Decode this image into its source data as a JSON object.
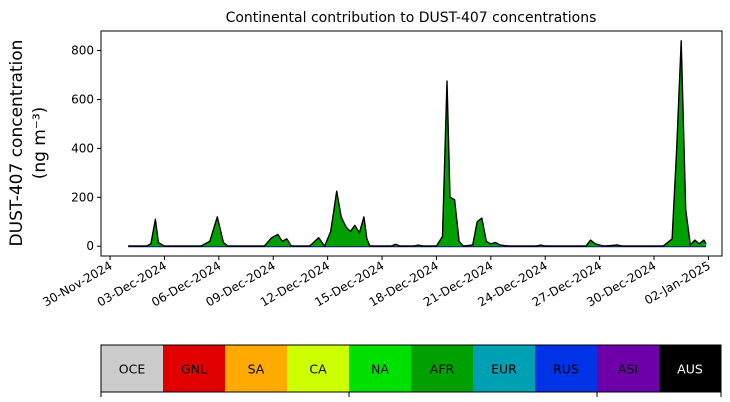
{
  "chart_data": {
    "type": "area",
    "title": "Continental contribution to DUST-407 concentrations",
    "ylabel_line1": "DUST-407 concentration",
    "ylabel_line2": "(ng m⁻³)",
    "xlabel": "",
    "x_ticks": [
      "30-Nov-2024",
      "03-Dec-2024",
      "06-Dec-2024",
      "09-Dec-2024",
      "12-Dec-2024",
      "15-Dec-2024",
      "18-Dec-2024",
      "21-Dec-2024",
      "24-Dec-2024",
      "27-Dec-2024",
      "30-Dec-2024",
      "02-Jan-2025"
    ],
    "y_ticks": [
      "0",
      "200",
      "400",
      "600",
      "800"
    ],
    "ylim": [
      -40,
      880
    ],
    "xlim": [
      "2024-11-29T12:00",
      "2025-01-02T18:00"
    ],
    "series_total_points": [
      [
        "2024-12-01T00:00",
        0
      ],
      [
        "2024-12-02T00:00",
        0
      ],
      [
        "2024-12-02T06:00",
        10
      ],
      [
        "2024-12-02T12:00",
        110
      ],
      [
        "2024-12-02T16:00",
        15
      ],
      [
        "2024-12-03T00:00",
        0
      ],
      [
        "2024-12-05T00:00",
        0
      ],
      [
        "2024-12-05T12:00",
        20
      ],
      [
        "2024-12-05T22:00",
        120
      ],
      [
        "2024-12-06T06:00",
        15
      ],
      [
        "2024-12-06T12:00",
        0
      ],
      [
        "2024-12-08T12:00",
        0
      ],
      [
        "2024-12-08T22:00",
        35
      ],
      [
        "2024-12-09T06:00",
        48
      ],
      [
        "2024-12-09T12:00",
        20
      ],
      [
        "2024-12-09T18:00",
        30
      ],
      [
        "2024-12-10T00:00",
        0
      ],
      [
        "2024-12-11T00:00",
        0
      ],
      [
        "2024-12-11T12:00",
        35
      ],
      [
        "2024-12-11T20:00",
        0
      ],
      [
        "2024-12-12T04:00",
        60
      ],
      [
        "2024-12-12T12:00",
        225
      ],
      [
        "2024-12-12T18:00",
        120
      ],
      [
        "2024-12-13T00:00",
        80
      ],
      [
        "2024-12-13T06:00",
        60
      ],
      [
        "2024-12-13T12:00",
        85
      ],
      [
        "2024-12-13T18:00",
        55
      ],
      [
        "2024-12-14T00:00",
        120
      ],
      [
        "2024-12-14T04:00",
        30
      ],
      [
        "2024-12-14T08:00",
        0
      ],
      [
        "2024-12-15T12:00",
        0
      ],
      [
        "2024-12-15T18:00",
        8
      ],
      [
        "2024-12-16T00:00",
        0
      ],
      [
        "2024-12-16T18:00",
        0
      ],
      [
        "2024-12-17T00:00",
        5
      ],
      [
        "2024-12-17T06:00",
        0
      ],
      [
        "2024-12-18T00:00",
        0
      ],
      [
        "2024-12-18T08:00",
        40
      ],
      [
        "2024-12-18T14:00",
        675
      ],
      [
        "2024-12-18T18:00",
        200
      ],
      [
        "2024-12-19T00:00",
        190
      ],
      [
        "2024-12-19T06:00",
        20
      ],
      [
        "2024-12-19T12:00",
        0
      ],
      [
        "2024-12-20T00:00",
        5
      ],
      [
        "2024-12-20T06:00",
        100
      ],
      [
        "2024-12-20T12:00",
        115
      ],
      [
        "2024-12-20T18:00",
        20
      ],
      [
        "2024-12-21T00:00",
        10
      ],
      [
        "2024-12-21T06:00",
        15
      ],
      [
        "2024-12-21T12:00",
        5
      ],
      [
        "2024-12-22T00:00",
        0
      ],
      [
        "2024-12-23T12:00",
        0
      ],
      [
        "2024-12-23T18:00",
        5
      ],
      [
        "2024-12-24T00:00",
        0
      ],
      [
        "2024-12-26T06:00",
        0
      ],
      [
        "2024-12-26T12:00",
        25
      ],
      [
        "2024-12-26T18:00",
        10
      ],
      [
        "2024-12-27T00:00",
        5
      ],
      [
        "2024-12-27T06:00",
        0
      ],
      [
        "2024-12-28T00:00",
        5
      ],
      [
        "2024-12-28T06:00",
        0
      ],
      [
        "2024-12-30T12:00",
        0
      ],
      [
        "2024-12-31T00:00",
        30
      ],
      [
        "2024-12-31T06:00",
        400
      ],
      [
        "2024-12-31T12:00",
        840
      ],
      [
        "2024-12-31T18:00",
        150
      ],
      [
        "2025-01-01T00:00",
        5
      ],
      [
        "2025-01-01T06:00",
        25
      ],
      [
        "2025-01-01T12:00",
        10
      ],
      [
        "2025-01-01T18:00",
        25
      ],
      [
        "2025-01-01T21:00",
        10
      ]
    ],
    "fill_color": "#00a000",
    "line_color": "#000000",
    "baseline_color": "#0a1a6e",
    "legend": {
      "placement": "bottom",
      "items": [
        {
          "label": "OCE",
          "color": "#cccccc",
          "text_color": "#000000"
        },
        {
          "label": "GNL",
          "color": "#e00000",
          "text_color": "#000000"
        },
        {
          "label": "SA",
          "color": "#ffaa00",
          "text_color": "#000000"
        },
        {
          "label": "CA",
          "color": "#ccff00",
          "text_color": "#000000"
        },
        {
          "label": "NA",
          "color": "#00e000",
          "text_color": "#000000"
        },
        {
          "label": "AFR",
          "color": "#00a000",
          "text_color": "#000000"
        },
        {
          "label": "EUR",
          "color": "#00a0b4",
          "text_color": "#000000"
        },
        {
          "label": "RUS",
          "color": "#0032e6",
          "text_color": "#000000"
        },
        {
          "label": "ASI",
          "color": "#6e00aa",
          "text_color": "#000000"
        },
        {
          "label": "AUS",
          "color": "#000000",
          "text_color": "#ffffff"
        }
      ]
    }
  }
}
